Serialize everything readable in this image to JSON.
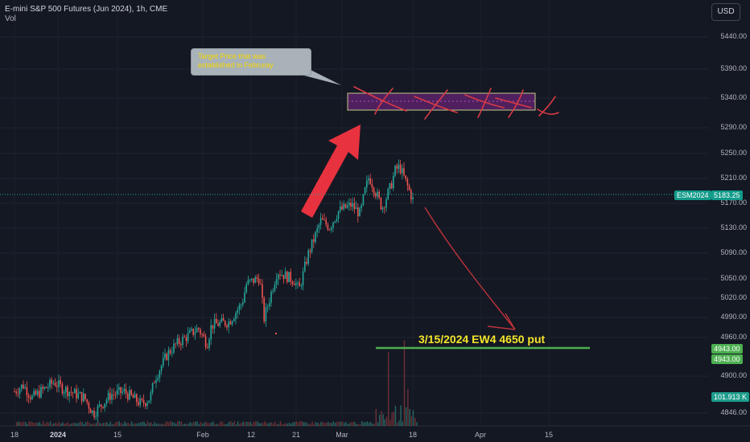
{
  "header": {
    "title": "E-mini S&P 500 Futures (Jun 2024), 1h, CME",
    "volume_label": "Vol",
    "currency_button": "USD"
  },
  "callout": {
    "text": "Target Price that was established in Februray"
  },
  "annotation": {
    "text": "3/15/2024 EW4 4650 put"
  },
  "tags": {
    "symbol": "ESM2024",
    "last_price": "5183.25",
    "level_1": "4943.00",
    "level_2": "4943.00",
    "volume": "101.913 K"
  },
  "colors": {
    "background": "#141823",
    "up_candle": "#26a69a",
    "down_candle": "#ef5350",
    "annotation_red": "#d83a44",
    "target_box": "#6a2a7e",
    "support_line": "#4caf50",
    "annotation_text": "#f5e52a"
  },
  "chart_data": {
    "type": "candlestick",
    "title": "E-mini S&P 500 Futures (Jun 2024), 1h, CME",
    "y_ticks": [
      "5440.00",
      "5390.00",
      "5340.00",
      "5290.00",
      "5250.00",
      "5210.00",
      "5170.00",
      "5130.00",
      "5090.00",
      "5050.00",
      "5020.00",
      "4990.00",
      "4960.00",
      "4900.00",
      "4846.00"
    ],
    "x_ticks": [
      "18",
      "2024",
      "15",
      "Feb",
      "12",
      "21",
      "Mar",
      "18",
      "Apr",
      "15"
    ],
    "price_path": [
      [
        "2023-12-18",
        4880
      ],
      [
        "2023-12-20",
        4890
      ],
      [
        "2023-12-22",
        4870
      ],
      [
        "2023-12-27",
        4895
      ],
      [
        "2023-12-29",
        4885
      ],
      [
        "2024-01-03",
        4870
      ],
      [
        "2024-01-05",
        4845
      ],
      [
        "2024-01-09",
        4875
      ],
      [
        "2024-01-12",
        4880
      ],
      [
        "2024-01-16",
        4860
      ],
      [
        "2024-01-18",
        4870
      ],
      [
        "2024-01-19",
        4900
      ],
      [
        "2024-01-22",
        4940
      ],
      [
        "2024-01-24",
        4955
      ],
      [
        "2024-01-26",
        4965
      ],
      [
        "2024-01-29",
        4980
      ],
      [
        "2024-01-31",
        4955
      ],
      [
        "2024-02-01",
        4985
      ],
      [
        "2024-02-05",
        4990
      ],
      [
        "2024-02-08",
        5020
      ],
      [
        "2024-02-09",
        5050
      ],
      [
        "2024-02-12",
        5060
      ],
      [
        "2024-02-13",
        4995
      ],
      [
        "2024-02-15",
        5045
      ],
      [
        "2024-02-16",
        5070
      ],
      [
        "2024-02-20",
        5055
      ],
      [
        "2024-02-21",
        5040
      ],
      [
        "2024-02-23",
        5095
      ],
      [
        "2024-02-26",
        5150
      ],
      [
        "2024-02-28",
        5140
      ],
      [
        "2024-03-01",
        5165
      ],
      [
        "2024-03-04",
        5175
      ],
      [
        "2024-03-06",
        5160
      ],
      [
        "2024-03-07",
        5195
      ],
      [
        "2024-03-08",
        5220
      ],
      [
        "2024-03-11",
        5170
      ],
      [
        "2024-03-13",
        5205
      ],
      [
        "2024-03-14",
        5230
      ],
      [
        "2024-03-15",
        5235
      ],
      [
        "2024-03-18",
        5183
      ]
    ],
    "target_zone": {
      "low": 5320,
      "high": 5345,
      "label": "Target Price that was established in Februray"
    },
    "support_level": 4943.0,
    "last_price": 5183.25,
    "annotation": "3/15/2024 EW4 4650 put"
  }
}
